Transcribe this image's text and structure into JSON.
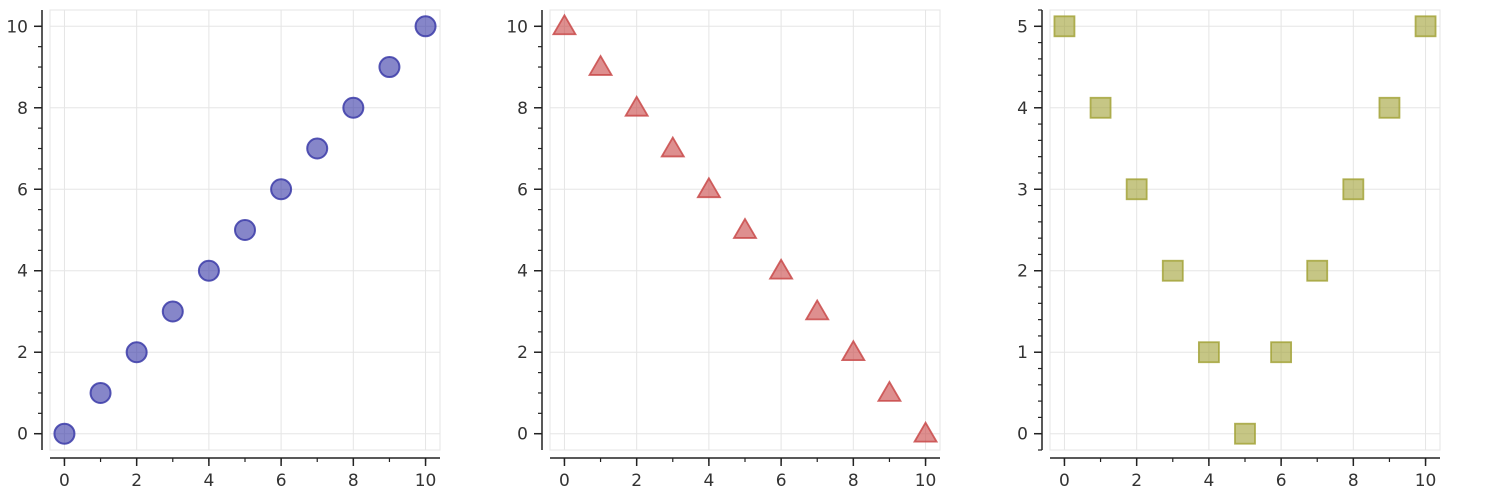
{
  "chart_data": [
    {
      "type": "scatter",
      "marker": "circle",
      "color": "#3b3ba8",
      "x": [
        0,
        1,
        2,
        3,
        4,
        5,
        6,
        7,
        8,
        9,
        10
      ],
      "y": [
        0,
        1,
        2,
        3,
        4,
        5,
        6,
        7,
        8,
        9,
        10
      ],
      "xlim": [
        -0.4,
        10.4
      ],
      "ylim": [
        -0.4,
        10.4
      ],
      "xticks": [
        0,
        2,
        4,
        6,
        8,
        10
      ],
      "yticks": [
        0,
        2,
        4,
        6,
        8,
        10
      ],
      "xminor": 1,
      "yminor": 0.5,
      "grid": true
    },
    {
      "type": "scatter",
      "marker": "triangle",
      "color": "#c94a4a",
      "x": [
        0,
        1,
        2,
        3,
        4,
        5,
        6,
        7,
        8,
        9,
        10
      ],
      "y": [
        10,
        9,
        8,
        7,
        6,
        5,
        4,
        3,
        2,
        1,
        0
      ],
      "xlim": [
        -0.4,
        10.4
      ],
      "ylim": [
        -0.4,
        10.4
      ],
      "xticks": [
        0,
        2,
        4,
        6,
        8,
        10
      ],
      "yticks": [
        0,
        2,
        4,
        6,
        8,
        10
      ],
      "xminor": 1,
      "yminor": 0.5,
      "grid": true
    },
    {
      "type": "scatter",
      "marker": "square",
      "color": "#a3a33a",
      "x": [
        0,
        1,
        2,
        3,
        4,
        5,
        6,
        7,
        8,
        9,
        10
      ],
      "y": [
        5,
        4,
        3,
        2,
        1,
        0,
        1,
        2,
        3,
        4,
        5
      ],
      "xlim": [
        -0.4,
        10.4
      ],
      "ylim": [
        -0.2,
        5.2
      ],
      "xticks": [
        0,
        2,
        4,
        6,
        8,
        10
      ],
      "yticks": [
        0,
        1,
        2,
        3,
        4,
        5
      ],
      "xminor": 1,
      "yminor": 0.2,
      "grid": true
    }
  ]
}
